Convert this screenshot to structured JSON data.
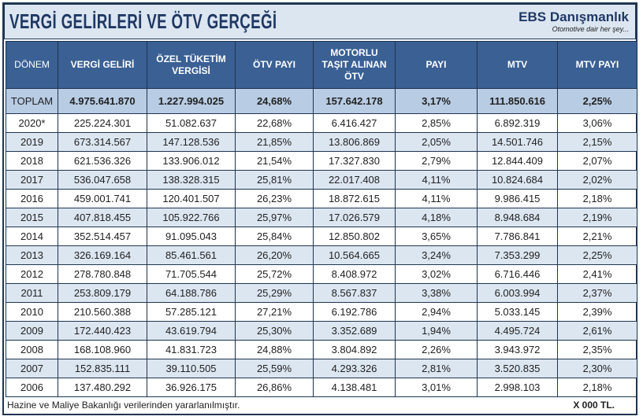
{
  "title": "VERGİ GELİRLERİ VE ÖTV GERÇEĞİ",
  "brand": {
    "name": "EBS Danışmanlık",
    "tagline": "Otomotive dair her şey..."
  },
  "columns": [
    "DÖNEM",
    "VERGİ GELİRİ",
    "ÖZEL TÜKETİM VERGİSİ",
    "ÖTV PAYI",
    "MOTORLU TAŞIT ALINAN ÖTV",
    "PAYI",
    "MTV",
    "MTV PAYI"
  ],
  "total": [
    "TOPLAM",
    "4.975.641.870",
    "1.227.994.025",
    "24,68%",
    "157.642.178",
    "3,17%",
    "111.850.616",
    "2,25%"
  ],
  "rows": [
    [
      "2020*",
      "225.224.301",
      "51.082.637",
      "22,68%",
      "6.416.427",
      "2,85%",
      "6.892.319",
      "3,06%"
    ],
    [
      "2019",
      "673.314.567",
      "147.128.536",
      "21,85%",
      "13.806.869",
      "2,05%",
      "14.501.746",
      "2,15%"
    ],
    [
      "2018",
      "621.536.326",
      "133.906.012",
      "21,54%",
      "17.327.830",
      "2,79%",
      "12.844.409",
      "2,07%"
    ],
    [
      "2017",
      "536.047.658",
      "138.328.315",
      "25,81%",
      "22.017.408",
      "4,11%",
      "10.824.684",
      "2,02%"
    ],
    [
      "2016",
      "459.001.741",
      "120.401.507",
      "26,23%",
      "18.872.615",
      "4,11%",
      "9.986.415",
      "2,18%"
    ],
    [
      "2015",
      "407.818.455",
      "105.922.766",
      "25,97%",
      "17.026.579",
      "4,18%",
      "8.948.684",
      "2,19%"
    ],
    [
      "2014",
      "352.514.457",
      "91.095.043",
      "25,84%",
      "12.850.802",
      "3,65%",
      "7.786.841",
      "2,21%"
    ],
    [
      "2013",
      "326.169.164",
      "85.461.561",
      "26,20%",
      "10.564.665",
      "3,24%",
      "7.353.299",
      "2,25%"
    ],
    [
      "2012",
      "278.780.848",
      "71.705.544",
      "25,72%",
      "8.408.972",
      "3,02%",
      "6.716.446",
      "2,41%"
    ],
    [
      "2011",
      "253.809.179",
      "64.188.786",
      "25,29%",
      "8.567.837",
      "3,38%",
      "6.003.994",
      "2,37%"
    ],
    [
      "2010",
      "210.560.388",
      "57.285.121",
      "27,21%",
      "6.192.786",
      "2,94%",
      "5.033.145",
      "2,39%"
    ],
    [
      "2009",
      "172.440.423",
      "43.619.794",
      "25,30%",
      "3.352.689",
      "1,94%",
      "4.495.724",
      "2,61%"
    ],
    [
      "2008",
      "168.108.960",
      "41.831.723",
      "24,88%",
      "3.804.892",
      "2,26%",
      "3.943.972",
      "2,35%"
    ],
    [
      "2007",
      "152.835.111",
      "39.110.505",
      "25,59%",
      "4.293.326",
      "2,81%",
      "3.520.835",
      "2,30%"
    ],
    [
      "2006",
      "137.480.292",
      "36.926.175",
      "26,86%",
      "4.138.481",
      "3,01%",
      "2.998.103",
      "2,18%"
    ]
  ],
  "footer": {
    "source": "Hazine ve Maliye Bakanlığı verilerinden yararlanılmıştır.",
    "unit": "X 000 TL."
  }
}
